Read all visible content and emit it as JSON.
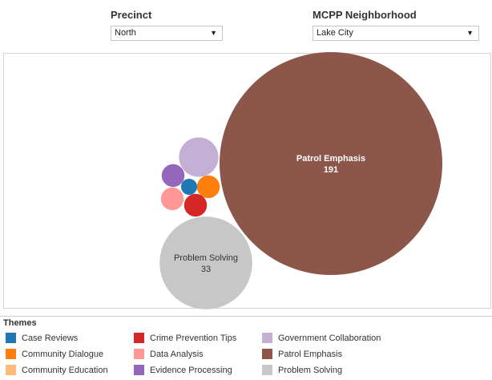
{
  "filters": {
    "precinct": {
      "label": "Precinct",
      "value": "North"
    },
    "neighborhood": {
      "label": "MCPP Neighborhood",
      "value": "Lake City"
    }
  },
  "legend": {
    "title": "Themes",
    "items": [
      {
        "label": "Case Reviews",
        "color": "#1f77b4"
      },
      {
        "label": "Community Dialogue",
        "color": "#ff7f0e"
      },
      {
        "label": "Community Education",
        "color": "#ffbb78"
      },
      {
        "label": "Crime Prevention Tips",
        "color": "#d62728"
      },
      {
        "label": "Data Analysis",
        "color": "#ff9896"
      },
      {
        "label": "Evidence Processing",
        "color": "#9467bd"
      },
      {
        "label": "Government Collaboration",
        "color": "#c5b0d5"
      },
      {
        "label": "Patrol Emphasis",
        "color": "#8c564b"
      },
      {
        "label": "Problem Solving",
        "color": "#c7c7c7"
      }
    ]
  },
  "chart_data": {
    "type": "bubble",
    "series": [
      {
        "name": "Patrol Emphasis",
        "value": 191,
        "color": "#8c564b",
        "labeled": true
      },
      {
        "name": "Problem Solving",
        "value": 33,
        "color": "#c7c7c7",
        "labeled": true
      },
      {
        "name": "Government Collaboration",
        "value": 6,
        "color": "#c5b0d5",
        "labeled": false
      },
      {
        "name": "Evidence Processing",
        "value": 2,
        "color": "#9467bd",
        "labeled": false
      },
      {
        "name": "Data Analysis",
        "value": 2,
        "color": "#ff9896",
        "labeled": false
      },
      {
        "name": "Community Dialogue",
        "value": 2,
        "color": "#ff7f0e",
        "labeled": false
      },
      {
        "name": "Crime Prevention Tips",
        "value": 2,
        "color": "#d62728",
        "labeled": false
      },
      {
        "name": "Case Reviews",
        "value": 1,
        "color": "#1f77b4",
        "labeled": false
      }
    ]
  }
}
